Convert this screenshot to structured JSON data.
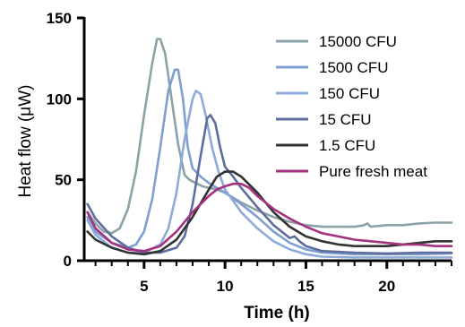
{
  "chart_data": {
    "type": "line",
    "title": "",
    "xlabel": "Time (h)",
    "ylabel": "Heat flow (μW)",
    "xlim": [
      1.3,
      24
    ],
    "ylim": [
      0,
      150
    ],
    "x_ticks": [
      5,
      10,
      15,
      20
    ],
    "y_ticks": [
      0,
      50,
      100,
      150
    ],
    "legend_position": "top-right",
    "grid": false,
    "series": [
      {
        "name": "15000 CFU",
        "color": "#8ba2a8",
        "points": [
          [
            1.5,
            30
          ],
          [
            2,
            23
          ],
          [
            2.5,
            18
          ],
          [
            3,
            17
          ],
          [
            3.5,
            20
          ],
          [
            4,
            32
          ],
          [
            4.5,
            55
          ],
          [
            5,
            90
          ],
          [
            5.5,
            122
          ],
          [
            5.8,
            137
          ],
          [
            6,
            137
          ],
          [
            6.3,
            128
          ],
          [
            6.7,
            100
          ],
          [
            7.1,
            72
          ],
          [
            7.5,
            53
          ],
          [
            7.8,
            50
          ],
          [
            8.2,
            48
          ],
          [
            8.6,
            46
          ],
          [
            9,
            45
          ],
          [
            9.5,
            44
          ],
          [
            10,
            42
          ],
          [
            11,
            36
          ],
          [
            12,
            31
          ],
          [
            13,
            27
          ],
          [
            14,
            24
          ],
          [
            15,
            22
          ],
          [
            16,
            21
          ],
          [
            17,
            21
          ],
          [
            18,
            21
          ],
          [
            18.6,
            22
          ],
          [
            18.8,
            23
          ],
          [
            19,
            21
          ],
          [
            20,
            22
          ],
          [
            21,
            22
          ],
          [
            22,
            23
          ],
          [
            23,
            23.5
          ],
          [
            24,
            23.5
          ]
        ]
      },
      {
        "name": "1500 CFU",
        "color": "#7e9fcf",
        "points": [
          [
            1.5,
            27
          ],
          [
            2,
            18
          ],
          [
            3,
            11
          ],
          [
            4,
            8
          ],
          [
            4.5,
            10
          ],
          [
            5,
            18
          ],
          [
            5.5,
            38
          ],
          [
            6,
            70
          ],
          [
            6.5,
            105
          ],
          [
            6.9,
            118
          ],
          [
            7.1,
            118
          ],
          [
            7.4,
            100
          ],
          [
            7.7,
            70
          ],
          [
            8,
            57
          ],
          [
            8.5,
            52
          ],
          [
            9,
            48
          ],
          [
            10,
            42
          ],
          [
            11,
            35
          ],
          [
            12,
            27
          ],
          [
            13,
            18
          ],
          [
            14,
            11
          ],
          [
            15,
            7
          ],
          [
            16,
            5
          ],
          [
            18,
            4
          ],
          [
            20,
            4
          ],
          [
            22,
            4
          ],
          [
            24,
            4.5
          ]
        ]
      },
      {
        "name": "150 CFU",
        "color": "#8eaad9",
        "points": [
          [
            1.5,
            25
          ],
          [
            2,
            16
          ],
          [
            3,
            8
          ],
          [
            4,
            5
          ],
          [
            5,
            5
          ],
          [
            6,
            10
          ],
          [
            6.5,
            20
          ],
          [
            7,
            42
          ],
          [
            7.5,
            75
          ],
          [
            8,
            100
          ],
          [
            8.2,
            105
          ],
          [
            8.5,
            103
          ],
          [
            8.8,
            90
          ],
          [
            9.2,
            70
          ],
          [
            9.6,
            55
          ],
          [
            10,
            44
          ],
          [
            11,
            30
          ],
          [
            12,
            20
          ],
          [
            13,
            12
          ],
          [
            14,
            7
          ],
          [
            15,
            4
          ],
          [
            16,
            2.5
          ],
          [
            18,
            2
          ],
          [
            20,
            2
          ],
          [
            22,
            2
          ],
          [
            24,
            2
          ]
        ]
      },
      {
        "name": "15 CFU",
        "color": "#5f6d9e",
        "points": [
          [
            1.5,
            35
          ],
          [
            2,
            26
          ],
          [
            3,
            15
          ],
          [
            4,
            8
          ],
          [
            5,
            5
          ],
          [
            6,
            5
          ],
          [
            7,
            8
          ],
          [
            7.5,
            15
          ],
          [
            8,
            35
          ],
          [
            8.5,
            65
          ],
          [
            8.9,
            88
          ],
          [
            9.1,
            90
          ],
          [
            9.4,
            85
          ],
          [
            9.7,
            70
          ],
          [
            10,
            58
          ],
          [
            10.5,
            52
          ],
          [
            11,
            45
          ],
          [
            12,
            33
          ],
          [
            13,
            22
          ],
          [
            13.5,
            18
          ],
          [
            14,
            14
          ],
          [
            14.3,
            15
          ],
          [
            14.6,
            12
          ],
          [
            15,
            9
          ],
          [
            16,
            6
          ],
          [
            18,
            5
          ],
          [
            20,
            4.5
          ],
          [
            22,
            5
          ],
          [
            24,
            5
          ]
        ]
      },
      {
        "name": "1.5 CFU",
        "color": "#333333",
        "points": [
          [
            1.5,
            18
          ],
          [
            2,
            13
          ],
          [
            3,
            8
          ],
          [
            4,
            5
          ],
          [
            5,
            4
          ],
          [
            6,
            6
          ],
          [
            7,
            13
          ],
          [
            8,
            27
          ],
          [
            9,
            44
          ],
          [
            9.5,
            52
          ],
          [
            10,
            55
          ],
          [
            10.5,
            55
          ],
          [
            11,
            52
          ],
          [
            12,
            42
          ],
          [
            13,
            30
          ],
          [
            14,
            21
          ],
          [
            15,
            15
          ],
          [
            16,
            12
          ],
          [
            17,
            10
          ],
          [
            18,
            9
          ],
          [
            19,
            9
          ],
          [
            20,
            9
          ],
          [
            21,
            10
          ],
          [
            22,
            11
          ],
          [
            23,
            12
          ],
          [
            24,
            12
          ]
        ]
      },
      {
        "name": "Pure fresh meat",
        "color": "#a3337e",
        "points": [
          [
            1.5,
            30
          ],
          [
            2,
            20
          ],
          [
            3,
            11
          ],
          [
            4,
            7
          ],
          [
            5,
            6
          ],
          [
            6,
            9
          ],
          [
            7,
            18
          ],
          [
            8,
            30
          ],
          [
            9,
            40
          ],
          [
            9.5,
            44
          ],
          [
            10,
            46
          ],
          [
            10.5,
            47.5
          ],
          [
            11,
            47.5
          ],
          [
            11.5,
            45
          ],
          [
            12,
            40
          ],
          [
            13,
            32
          ],
          [
            14,
            26
          ],
          [
            15,
            21
          ],
          [
            16,
            17
          ],
          [
            17,
            15
          ],
          [
            18,
            13
          ],
          [
            19,
            12
          ],
          [
            20,
            11
          ],
          [
            21,
            10
          ],
          [
            22,
            10
          ],
          [
            23,
            9
          ],
          [
            24,
            9
          ]
        ]
      }
    ]
  }
}
